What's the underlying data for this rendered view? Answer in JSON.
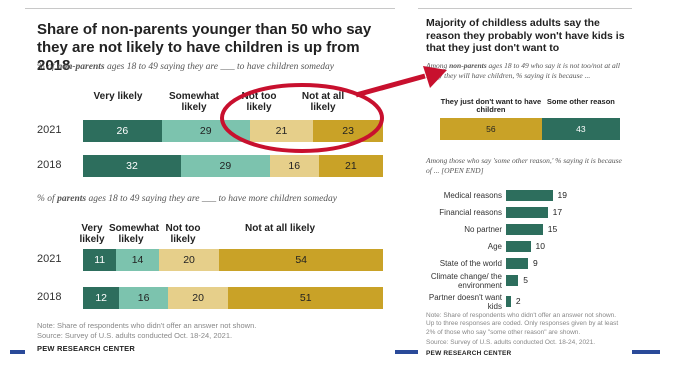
{
  "left_title": "Share of non-parents younger than 50 who say they are not likely to have children is up from 2018",
  "sub1_pre": "% of ",
  "sub1_bold": "non-parents",
  "sub1_post": " ages 18 to 49 saying they are ___ to have children someday",
  "sub2_pre": "% of ",
  "sub2_bold": "parents",
  "sub2_post": " ages 18 to 49 saying they are ___ to have more children someday",
  "left_note": "Note: Share of respondents who didn't offer an answer not shown.",
  "left_source": "Source: Survey of U.S. adults conducted Oct. 18-24, 2021.",
  "brand": "PEW RESEARCH CENTER",
  "right_title": "Majority of childless adults say the reason they probably won't have kids is that they just don't want to",
  "rsub1_pre": "Among ",
  "rsub1_bold": "non-parents",
  "rsub1_post": " ages 18 to 49 who say it is not too/not at all likely they will have children, % saying it is because ...",
  "rsub2": "Among those who say 'some other reason,' % saying it is because of ... [OPEN END]",
  "right_note": "Note: Share of respondents who didn't offer an answer not shown. Up to three responses are coded. Only responses given by at least 2% of those who say \"some other reason\" are shown.",
  "right_source": "Source: Survey of U.S. adults conducted Oct. 18-24, 2021.",
  "colors": {
    "dark": "#2d6e5d",
    "teal": "#7cc3ae",
    "beige": "#e6cf8a",
    "gold": "#c9a227",
    "red": "#c8102e",
    "line": "#2a4a99"
  },
  "chart_data": [
    {
      "type": "bar",
      "stacked": true,
      "orientation": "horizontal",
      "categories": [
        "Very likely",
        "Somewhat likely",
        "Not too likely",
        "Not at all likely"
      ],
      "rows": [
        {
          "year": "2021",
          "values": [
            26,
            29,
            21,
            23
          ]
        },
        {
          "year": "2018",
          "values": [
            32,
            29,
            16,
            21
          ]
        }
      ]
    },
    {
      "type": "bar",
      "stacked": true,
      "orientation": "horizontal",
      "categories": [
        "Very likely",
        "Somewhat likely",
        "Not too likely",
        "Not at all likely"
      ],
      "rows": [
        {
          "year": "2021",
          "values": [
            11,
            14,
            20,
            54
          ]
        },
        {
          "year": "2018",
          "values": [
            12,
            16,
            20,
            51
          ]
        }
      ]
    },
    {
      "type": "bar",
      "stacked": true,
      "orientation": "horizontal",
      "categories": [
        "They just don't want to have children",
        "Some other reason"
      ],
      "rows": [
        {
          "year": "",
          "values": [
            56,
            43
          ]
        }
      ]
    },
    {
      "type": "bar",
      "orientation": "horizontal",
      "categories": [
        "Medical reasons",
        "Financial reasons",
        "No partner",
        "Age",
        "State of the world",
        "Climate change/ the environment",
        "Partner doesn't want kids"
      ],
      "values": [
        19,
        17,
        15,
        10,
        9,
        5,
        2
      ]
    }
  ]
}
